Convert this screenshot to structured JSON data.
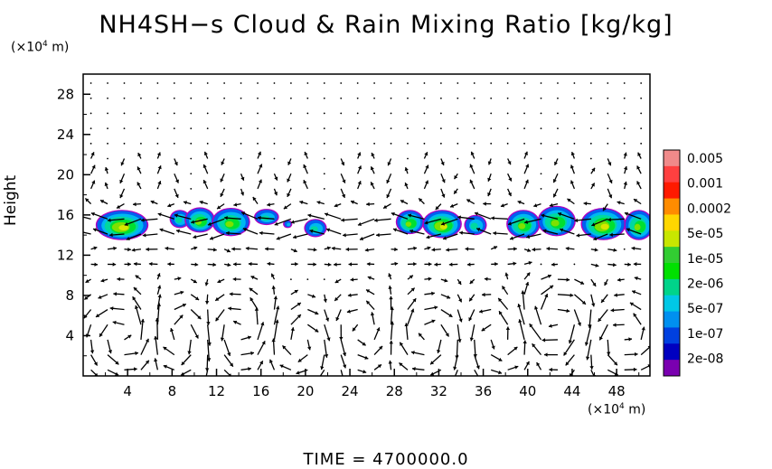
{
  "chart_data": {
    "type": "heatmap",
    "title": "NH4SH−s Cloud & Rain Mixing Ratio [kg/kg]",
    "ylabel": "Height",
    "y_unit": "(×10⁴ m)",
    "x_unit": "(×10⁴ m)",
    "xlim": [
      0,
      51
    ],
    "ylim": [
      0,
      30
    ],
    "x_ticks": [
      "4",
      "8",
      "12",
      "16",
      "20",
      "24",
      "28",
      "32",
      "36",
      "40",
      "44",
      "48"
    ],
    "y_ticks": [
      "4",
      "8",
      "12",
      "16",
      "20",
      "24",
      "28"
    ],
    "colorbar": {
      "labels": [
        "0.005",
        "0.001",
        "0.0002",
        "5e-05",
        "1e-05",
        "2e-06",
        "5e-07",
        "1e-07",
        "2e-08"
      ],
      "colors": [
        "#f08a8a",
        "#ff4040",
        "#ff1a00",
        "#ff8c00",
        "#ffd700",
        "#c8e600",
        "#32cd32",
        "#00e000",
        "#00d48a",
        "#00c8e6",
        "#0090f0",
        "#0040e0",
        "#0000c0",
        "#7a00b0"
      ]
    },
    "cloud_layer": {
      "center_height": 15,
      "patches": [
        {
          "x": 3.5,
          "y": 15.0,
          "w": 4.5,
          "h": 2.8,
          "peak": "5e-05"
        },
        {
          "x": 8.7,
          "y": 15.6,
          "w": 1.6,
          "h": 1.6,
          "peak": "2e-06"
        },
        {
          "x": 10.5,
          "y": 15.5,
          "w": 2.5,
          "h": 2.3,
          "peak": "1e-05"
        },
        {
          "x": 13.3,
          "y": 15.3,
          "w": 3.2,
          "h": 2.6,
          "peak": "1e-05"
        },
        {
          "x": 16.5,
          "y": 15.8,
          "w": 2.0,
          "h": 1.4,
          "peak": "2e-06"
        },
        {
          "x": 18.4,
          "y": 15.1,
          "w": 0.6,
          "h": 0.6,
          "peak": "5e-07"
        },
        {
          "x": 20.9,
          "y": 14.7,
          "w": 1.8,
          "h": 1.6,
          "peak": "2e-06"
        },
        {
          "x": 29.4,
          "y": 15.3,
          "w": 2.3,
          "h": 2.2,
          "peak": "1e-05"
        },
        {
          "x": 32.3,
          "y": 15.1,
          "w": 3.3,
          "h": 2.6,
          "peak": "5e-05"
        },
        {
          "x": 35.3,
          "y": 15.0,
          "w": 1.8,
          "h": 1.8,
          "peak": "2e-06"
        },
        {
          "x": 39.6,
          "y": 15.1,
          "w": 2.8,
          "h": 2.6,
          "peak": "1e-05"
        },
        {
          "x": 42.6,
          "y": 15.4,
          "w": 3.2,
          "h": 2.8,
          "peak": "1e-05"
        },
        {
          "x": 46.8,
          "y": 15.1,
          "w": 3.8,
          "h": 3.0,
          "peak": "5e-05"
        },
        {
          "x": 50.0,
          "y": 15.0,
          "w": 2.4,
          "h": 2.8,
          "peak": "1e-05"
        }
      ]
    },
    "wind_vectors": {
      "dx": 1.5,
      "dy": 1.0,
      "circulation_cells": [
        {
          "x": 4.0,
          "y": 4.0,
          "strength": 1.3
        },
        {
          "x": 8.5,
          "y": 4.0,
          "strength": -1.2
        },
        {
          "x": 14.0,
          "y": 4.5,
          "strength": 1.1
        },
        {
          "x": 19.5,
          "y": 3.5,
          "strength": -1.0
        },
        {
          "x": 25.0,
          "y": 4.5,
          "strength": 0.8
        },
        {
          "x": 31.0,
          "y": 4.0,
          "strength": -1.1
        },
        {
          "x": 37.5,
          "y": 4.0,
          "strength": 1.0
        },
        {
          "x": 42.5,
          "y": 5.5,
          "strength": -1.4
        },
        {
          "x": 48.5,
          "y": 4.0,
          "strength": 1.1
        }
      ]
    }
  },
  "footer": {
    "time_text": "TIME  =  4700000.0"
  }
}
